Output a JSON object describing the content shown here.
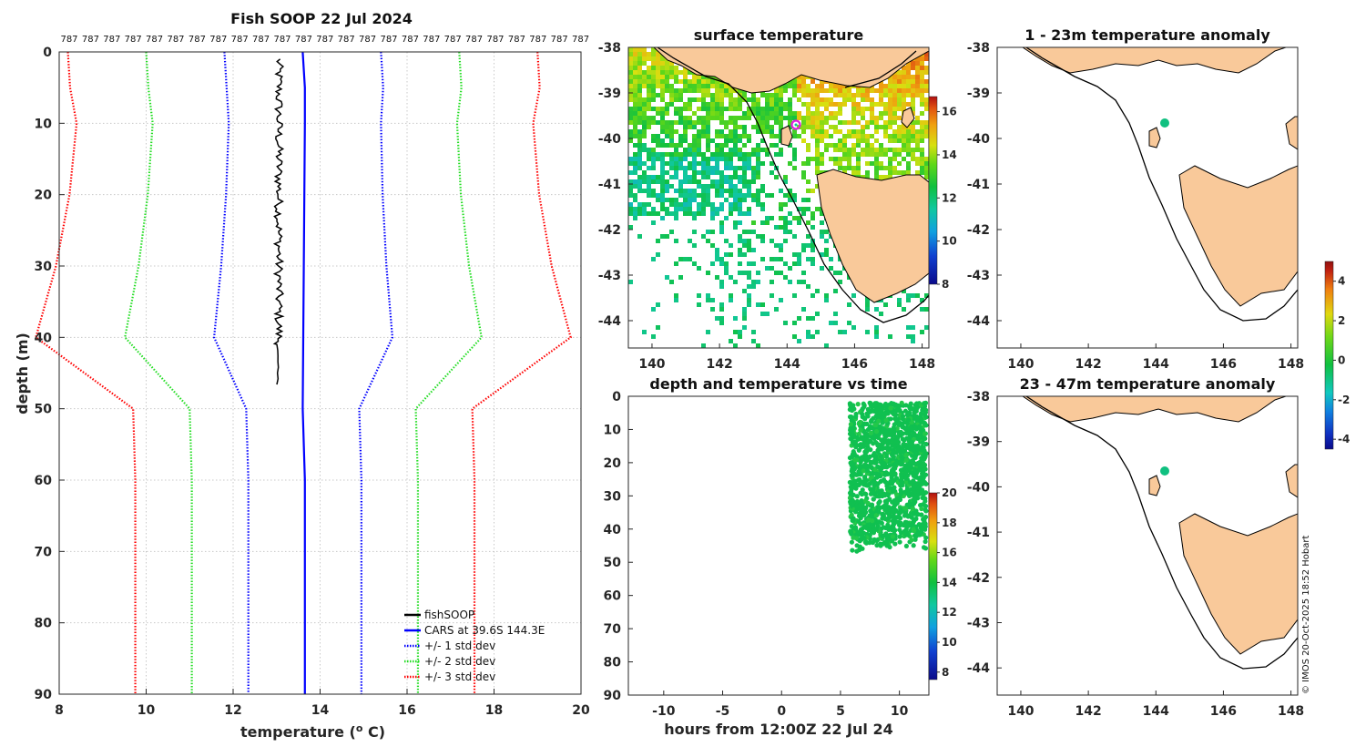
{
  "figure": {
    "credit": "© IMOS 20-Oct-2025 18:52 Hobart",
    "colors": {
      "fishsoop": "#000000",
      "cars": "#0000ff",
      "std1": "#0000ff",
      "std2": "#22dd22",
      "std3": "#ff0000",
      "land": "#f9c99a",
      "survey_point": "#00c8a0"
    }
  },
  "chart_data": [
    {
      "id": "profile",
      "type": "line",
      "title": "Fish SOOP 22 Jul 2024",
      "xlabel": "temperature (",
      "xlabel_sup": "o",
      "xlabel_end": " C)",
      "ylabel": "depth (m)",
      "xlim": [
        8,
        20
      ],
      "ylim": [
        0,
        90
      ],
      "xticks": [
        "8",
        "10",
        "12",
        "14",
        "16",
        "18",
        "20"
      ],
      "yticks": [
        "0",
        "10",
        "20",
        "30",
        "40",
        "50",
        "60",
        "70",
        "80",
        "90"
      ],
      "top_labels": [
        "787",
        "787",
        "787",
        "787",
        "787",
        "787",
        "787",
        "787",
        "787",
        "787",
        "787",
        "787",
        "787",
        "787",
        "787",
        "787",
        "787",
        "787",
        "787",
        "787",
        "787",
        "787",
        "787",
        "787",
        "787"
      ],
      "legend": [
        "fishSOOP",
        "CARS at 39.6S 144.3E",
        "+/- 1 std dev",
        "+/- 2 std dev",
        "+/- 3 std dev"
      ],
      "fishsoop": {
        "depth_range": [
          1,
          47
        ],
        "temp_range": [
          12.95,
          13.15
        ]
      },
      "cars_mean": {
        "depth": [
          0,
          5,
          10,
          50,
          60,
          90
        ],
        "temp": [
          13.6,
          13.65,
          13.65,
          13.6,
          13.65,
          13.65
        ]
      },
      "plus_minus_std": {
        "depth": [
          0,
          5,
          10,
          20,
          30,
          40,
          50,
          60,
          90
        ],
        "sd": [
          1.8,
          1.8,
          1.75,
          1.8,
          1.9,
          2.05,
          1.3,
          1.3,
          1.3
        ]
      }
    },
    {
      "id": "sst_map",
      "type": "heatmap",
      "title": "surface temperature",
      "xticks": [
        "140",
        "142",
        "144",
        "146",
        "148"
      ],
      "yticks": [
        "-38",
        "-39",
        "-40",
        "-41",
        "-42",
        "-43",
        "-44"
      ],
      "xlim": [
        139.3,
        148.2
      ],
      "ylim": [
        -44.6,
        -38
      ],
      "colorbar_ticks": [
        "16",
        "14",
        "12",
        "10",
        "8"
      ],
      "colorbar_range": [
        8,
        16.7
      ]
    },
    {
      "id": "depth_time",
      "type": "scatter",
      "title": "depth and temperature vs time",
      "xlabel": "hours from 12:00Z 22 Jul 24",
      "xticks": [
        "-10",
        "-5",
        "0",
        "5",
        "10"
      ],
      "yticks": [
        "0",
        "10",
        "20",
        "30",
        "40",
        "50",
        "60",
        "70",
        "80",
        "90"
      ],
      "xlim": [
        -13,
        12.5
      ],
      "ylim": [
        0,
        90
      ],
      "hours_range": [
        5.8,
        12.3
      ],
      "depth_range": [
        2,
        47
      ],
      "colorbar_ticks": [
        "20",
        "18",
        "16",
        "14",
        "12",
        "10",
        "8"
      ],
      "colorbar_range": [
        7.5,
        20
      ]
    },
    {
      "id": "anomaly_1_23",
      "type": "heatmap",
      "title": "1 - 23m temperature anomaly",
      "xticks": [
        "140",
        "142",
        "144",
        "146",
        "148"
      ],
      "yticks": [
        "-38",
        "-39",
        "-40",
        "-41",
        "-42",
        "-43",
        "-44"
      ],
      "xlim": [
        139.3,
        148.2
      ],
      "ylim": [
        -44.6,
        -38
      ]
    },
    {
      "id": "anomaly_23_47",
      "type": "heatmap",
      "title": "23 - 47m temperature anomaly",
      "xticks": [
        "140",
        "142",
        "144",
        "146",
        "148"
      ],
      "yticks": [
        "-38",
        "-39",
        "-40",
        "-41",
        "-42",
        "-43",
        "-44"
      ],
      "xlim": [
        139.3,
        148.2
      ],
      "ylim": [
        -44.6,
        -38
      ],
      "colorbar_ticks": [
        "4",
        "2",
        "0",
        "-2",
        "-4"
      ],
      "colorbar_range": [
        -4.5,
        5
      ]
    }
  ]
}
